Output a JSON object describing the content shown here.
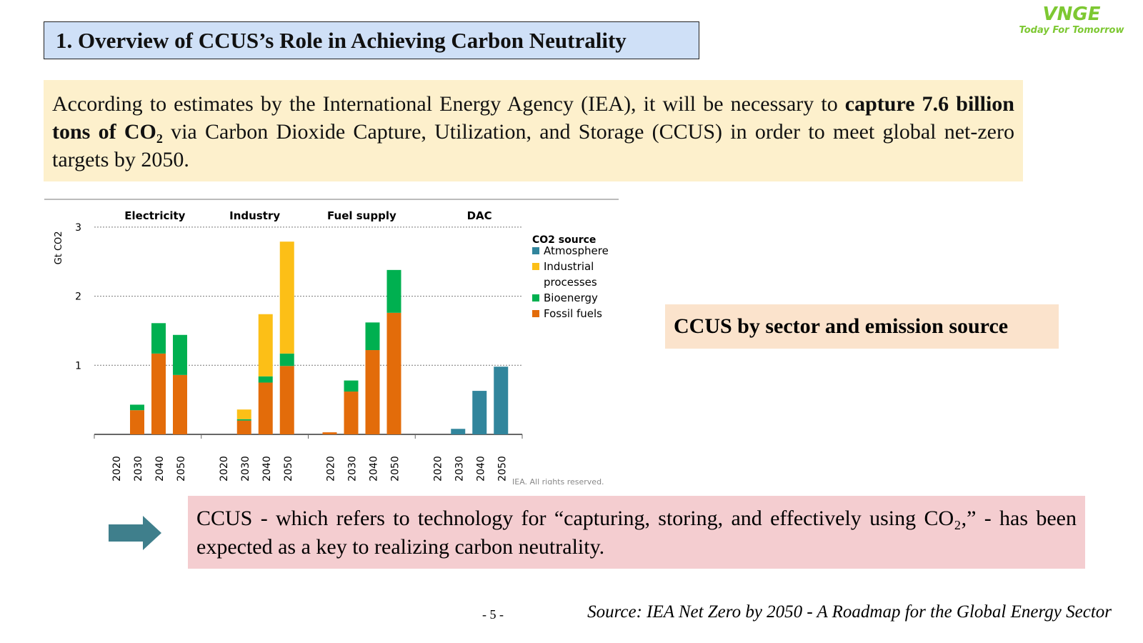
{
  "title": "1. Overview of CCUS’s Role in Achieving Carbon Neutrality",
  "logo": {
    "brand": "VNGE",
    "tagline": "Today For Tomorrow"
  },
  "intro": {
    "part1": "According to estimates by the International Energy Agency (IEA), it will be necessary to ",
    "bold": "capture 7.6 billion tons of CO₂",
    "part2": " via Carbon Dioxide Capture, Utilization, and Storage (CCUS) in order to meet global net-zero targets by 2050."
  },
  "caption": "CCUS by sector and emission source",
  "bottom_text": "CCUS - which refers to technology for “capturing, storing, and effectively using CO₂,” - has been expected as a key to realizing carbon neutrality.",
  "page_number": "- 5 -",
  "source": "Source: IEA Net Zero by 2050 - A Roadmap for the Global Energy Sector",
  "chart_data": {
    "type": "bar",
    "stacked": true,
    "ylabel": "Gt CO2",
    "ylim": [
      0,
      3
    ],
    "yticks": [
      1,
      2,
      3
    ],
    "grid": true,
    "legend_title": "CO2 source",
    "legend_position": "right",
    "groups": [
      "Electricity",
      "Industry",
      "Fuel supply",
      "DAC"
    ],
    "categories": [
      "2020",
      "2030",
      "2040",
      "2050"
    ],
    "credit": "IEA. All rights reserved.",
    "series": [
      {
        "name": "Fossil fuels",
        "color": "#e36c0a",
        "values": [
          [
            0,
            0.35,
            1.17,
            0.86
          ],
          [
            0,
            0.2,
            0.75,
            0.99
          ],
          [
            0.03,
            0.62,
            1.22,
            1.76
          ],
          [
            0,
            0,
            0,
            0
          ]
        ]
      },
      {
        "name": "Bioenergy",
        "color": "#00b050",
        "values": [
          [
            0,
            0.08,
            0.44,
            0.58
          ],
          [
            0,
            0.02,
            0.09,
            0.18
          ],
          [
            0,
            0.16,
            0.4,
            0.62
          ],
          [
            0,
            0,
            0,
            0
          ]
        ]
      },
      {
        "name": "Industrial processes",
        "color": "#fcbf17",
        "values": [
          [
            0,
            0,
            0,
            0
          ],
          [
            0,
            0.14,
            0.9,
            1.62
          ],
          [
            0,
            0,
            0,
            0
          ],
          [
            0,
            0,
            0,
            0
          ]
        ]
      },
      {
        "name": "Atmosphere",
        "color": "#31859c",
        "values": [
          [
            0,
            0,
            0,
            0
          ],
          [
            0,
            0,
            0,
            0
          ],
          [
            0,
            0,
            0,
            0
          ],
          [
            0,
            0.08,
            0.63,
            0.98
          ]
        ]
      }
    ],
    "legend_order": [
      "Atmosphere",
      "Industrial processes",
      "Bioenergy",
      "Fossil fuels"
    ]
  }
}
